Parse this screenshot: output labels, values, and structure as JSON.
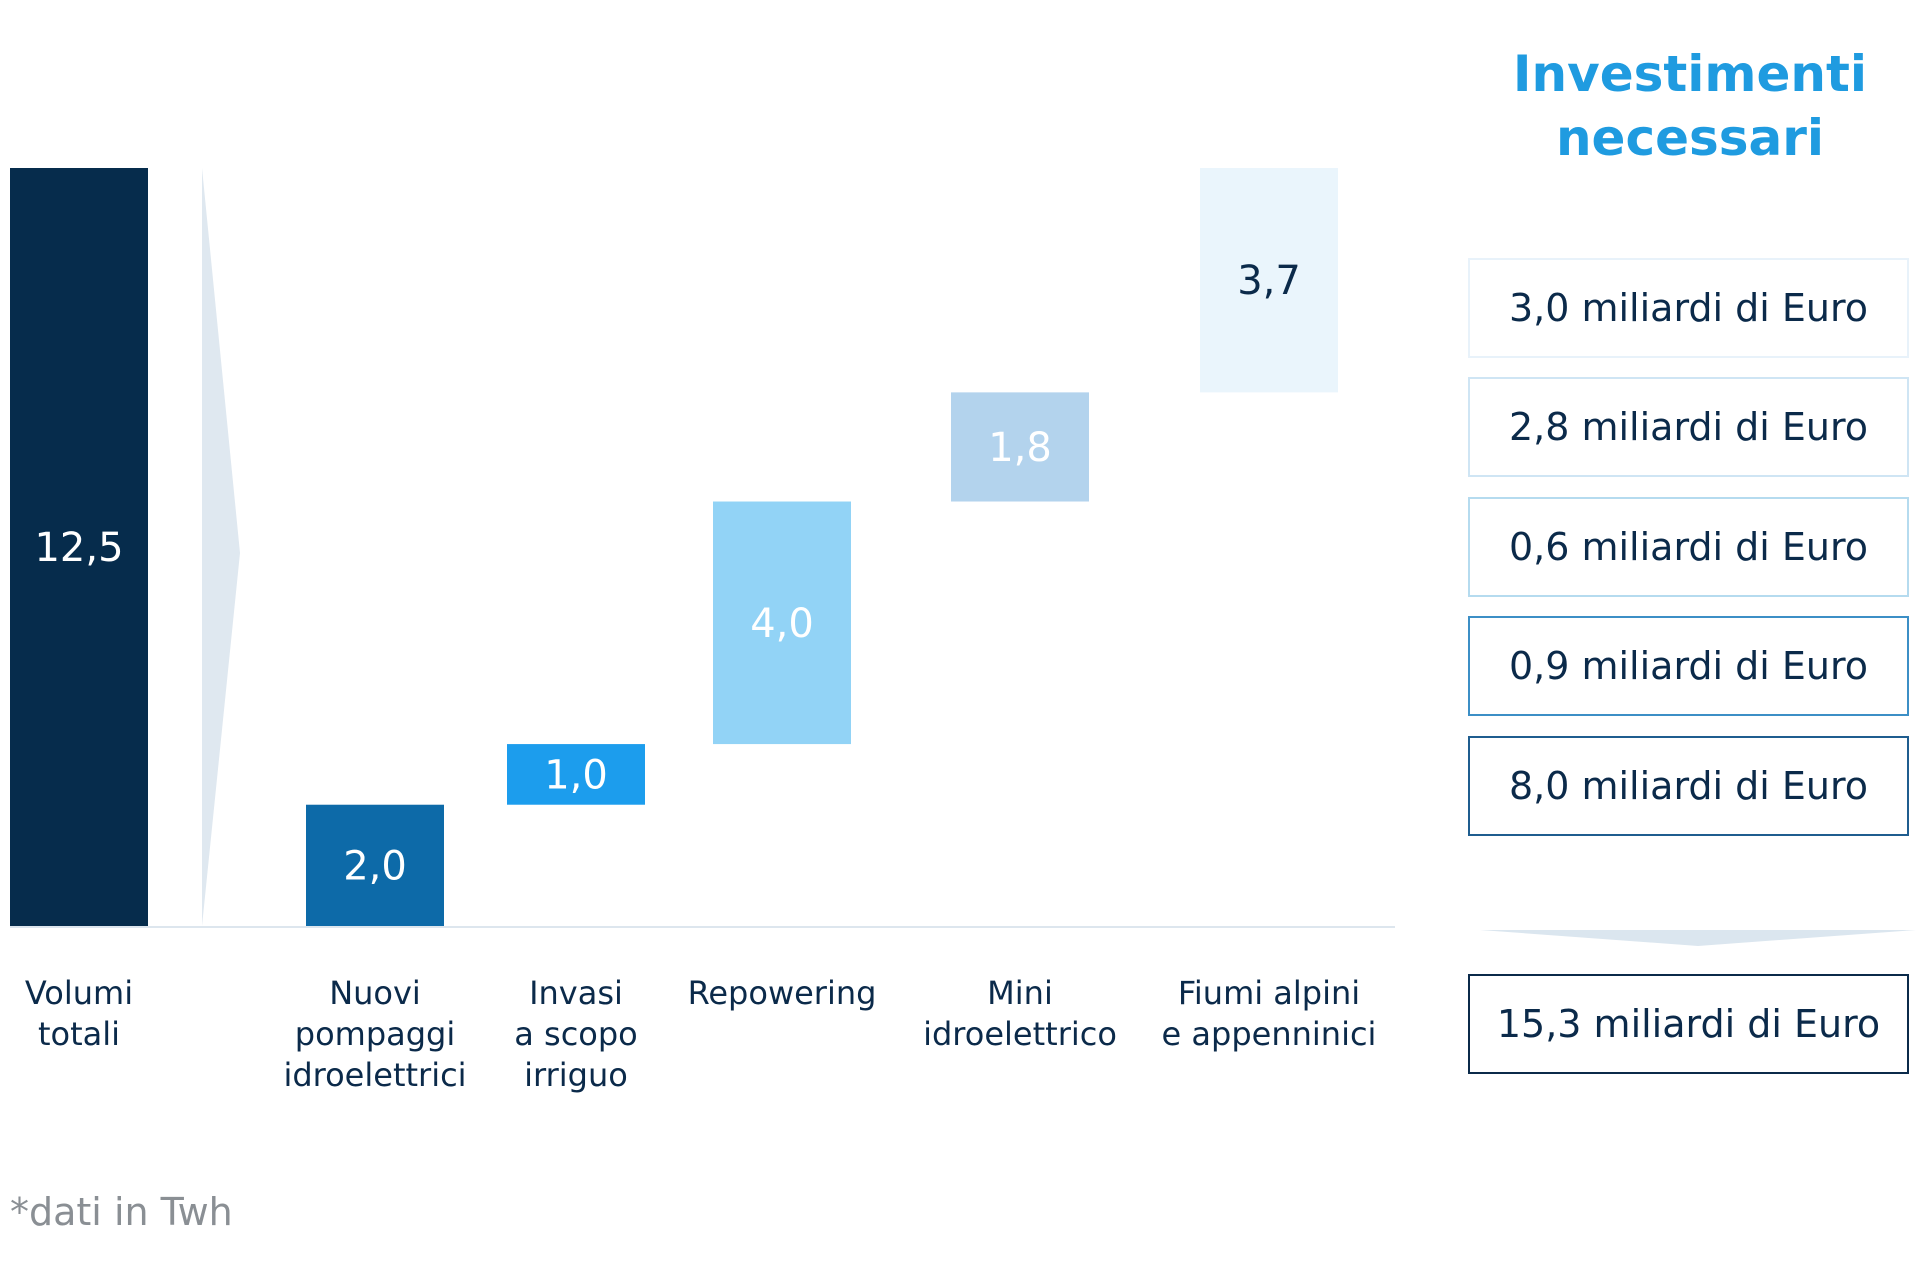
{
  "chart_data": {
    "type": "waterfall",
    "unit_note": "*dati in Twh",
    "ylim": [
      0,
      12.5
    ],
    "total": {
      "category": "Volumi totali",
      "value": 12.5,
      "label": "12,5",
      "color": "#062c4c",
      "label_color": "#ffffff"
    },
    "steps": [
      {
        "category": "Nuovi pompaggi idroelettrici",
        "lines": [
          "Nuovi",
          "pompaggi",
          "idroelettrici"
        ],
        "value": 2.0,
        "label": "2,0",
        "color": "#0d6aa8",
        "label_color": "#ffffff"
      },
      {
        "category": "Invasi a scopo irriguo",
        "lines": [
          "Invasi",
          "a scopo",
          "irriguo"
        ],
        "value": 1.0,
        "label": "1,0",
        "color": "#1c9ded",
        "label_color": "#ffffff"
      },
      {
        "category": "Repowering",
        "lines": [
          "Repowering"
        ],
        "value": 4.0,
        "label": "4,0",
        "color": "#92d3f6",
        "label_color": "#ffffff"
      },
      {
        "category": "Mini idroelettrico",
        "lines": [
          "Mini",
          "idroelettrico"
        ],
        "value": 1.8,
        "label": "1,8",
        "color": "#b3d3ed",
        "label_color": "#ffffff"
      },
      {
        "category": "Fiumi alpini e appenninici",
        "lines": [
          "Fiumi alpini",
          "e appenninici"
        ],
        "value": 3.7,
        "label": "3,7",
        "color": "#eaf5fc",
        "label_color": "#0b2a4a"
      }
    ],
    "total_lines": [
      "Volumi",
      "totali"
    ]
  },
  "side_panel": {
    "title_lines": [
      "Investimenti",
      "necessari"
    ],
    "title_color": "#1f9be0",
    "investments": [
      {
        "label": "3,0 miliardi di Euro",
        "border_color": "#e8f2fa"
      },
      {
        "label": "2,8 miliardi di Euro",
        "border_color": "#cfe5f4"
      },
      {
        "label": "0,6 miliardi di Euro",
        "border_color": "#b5dbef"
      },
      {
        "label": "0,9 miliardi di Euro",
        "border_color": "#3c8fc6"
      },
      {
        "label": "8,0 miliardi di Euro",
        "border_color": "#1f5d8f"
      }
    ],
    "total_investment": {
      "label": "15,3 miliardi di Euro",
      "border_color": "#0b2a4a"
    }
  },
  "footnote": "*dati in Twh"
}
